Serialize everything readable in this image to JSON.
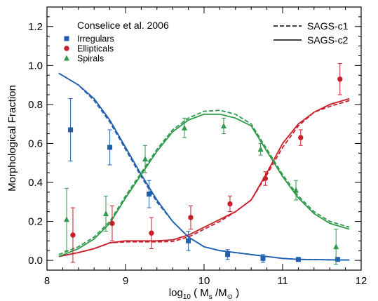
{
  "chart_data": {
    "type": "line",
    "xlabel": "log10 ( Ms /M⊙ )",
    "ylabel": "Morphological Fraction",
    "xlim": [
      8,
      12
    ],
    "ylim": [
      -0.05,
      1.3
    ],
    "xticks": [
      8,
      9,
      10,
      11,
      12
    ],
    "yticks": [
      0.0,
      0.2,
      0.4,
      0.6,
      0.8,
      1.0,
      1.2
    ],
    "grid": false,
    "legend_title": "Conselice et al. 2006",
    "colors": {
      "irregulars": "#1f5fb0",
      "ellipticals": "#c8202a",
      "spirals": "#2e9a4a"
    },
    "points": [
      {
        "name": "Irregulars",
        "marker": "square",
        "color": "#1f5fb0",
        "x": [
          8.3,
          8.8,
          9.3,
          9.8,
          10.3,
          10.75,
          11.2,
          11.7
        ],
        "y": [
          0.67,
          0.58,
          0.34,
          0.1,
          0.03,
          0.01,
          0.005,
          0.005
        ],
        "yerr": [
          0.16,
          0.09,
          0.07,
          0.05,
          0.025,
          0.02,
          0.008,
          0.008
        ]
      },
      {
        "name": "Ellipticals",
        "marker": "circle",
        "color": "#c8202a",
        "x": [
          8.33,
          8.83,
          9.33,
          9.83,
          10.33,
          10.78,
          11.23,
          11.73
        ],
        "y": [
          0.13,
          0.19,
          0.14,
          0.22,
          0.29,
          0.42,
          0.63,
          0.93
        ],
        "yerr": [
          0.14,
          0.09,
          0.08,
          0.06,
          0.04,
          0.035,
          0.04,
          0.08
        ]
      },
      {
        "name": "Spirals",
        "marker": "triangle",
        "color": "#2e9a4a",
        "x": [
          8.25,
          8.75,
          9.25,
          9.75,
          10.25,
          10.72,
          11.17,
          11.68
        ],
        "y": [
          0.21,
          0.24,
          0.52,
          0.68,
          0.69,
          0.57,
          0.36,
          0.07
        ],
        "yerr": [
          0.16,
          0.09,
          0.07,
          0.05,
          0.04,
          0.03,
          0.05,
          0.09
        ]
      }
    ],
    "series": [
      {
        "name": "SAGS-c1",
        "style": "dashed",
        "color": "#1f5fb0",
        "x": [
          8.15,
          8.4,
          8.6,
          8.8,
          9.0,
          9.2,
          9.4,
          9.6,
          9.8,
          10.0,
          10.2,
          10.4,
          10.6,
          10.8,
          11.0,
          11.2,
          11.4,
          11.6,
          11.85
        ],
        "y": [
          0.96,
          0.9,
          0.82,
          0.71,
          0.57,
          0.43,
          0.3,
          0.2,
          0.12,
          0.07,
          0.05,
          0.04,
          0.03,
          0.02,
          0.01,
          0.005,
          0.004,
          0.003,
          0.002
        ]
      },
      {
        "name": "SAGS-c2",
        "style": "solid",
        "color": "#1f5fb0",
        "x": [
          8.15,
          8.4,
          8.6,
          8.8,
          9.0,
          9.2,
          9.4,
          9.6,
          9.8,
          10.0,
          10.2,
          10.4,
          10.6,
          10.8,
          11.0,
          11.2,
          11.4,
          11.6,
          11.85
        ],
        "y": [
          0.96,
          0.9,
          0.83,
          0.72,
          0.58,
          0.44,
          0.31,
          0.2,
          0.12,
          0.07,
          0.05,
          0.04,
          0.03,
          0.02,
          0.01,
          0.005,
          0.004,
          0.003,
          0.002
        ]
      },
      {
        "name": "SAGS-c1",
        "style": "dashed",
        "color": "#c8202a",
        "x": [
          8.15,
          8.4,
          8.6,
          8.8,
          9.0,
          9.2,
          9.4,
          9.6,
          9.8,
          10.0,
          10.2,
          10.4,
          10.6,
          10.8,
          11.0,
          11.2,
          11.4,
          11.6,
          11.85
        ],
        "y": [
          0.02,
          0.04,
          0.06,
          0.09,
          0.095,
          0.095,
          0.095,
          0.097,
          0.12,
          0.16,
          0.2,
          0.25,
          0.31,
          0.44,
          0.58,
          0.69,
          0.76,
          0.79,
          0.82
        ]
      },
      {
        "name": "SAGS-c2",
        "style": "solid",
        "color": "#c8202a",
        "x": [
          8.15,
          8.4,
          8.6,
          8.8,
          9.0,
          9.2,
          9.4,
          9.6,
          9.8,
          10.0,
          10.2,
          10.4,
          10.6,
          10.8,
          11.0,
          11.2,
          11.4,
          11.6,
          11.85
        ],
        "y": [
          0.02,
          0.04,
          0.06,
          0.09,
          0.1,
          0.1,
          0.1,
          0.105,
          0.13,
          0.17,
          0.21,
          0.25,
          0.31,
          0.45,
          0.6,
          0.7,
          0.76,
          0.8,
          0.83
        ]
      },
      {
        "name": "SAGS-c1",
        "style": "dashed",
        "color": "#2e9a4a",
        "x": [
          8.15,
          8.4,
          8.6,
          8.8,
          9.0,
          9.2,
          9.4,
          9.6,
          9.8,
          10.0,
          10.2,
          10.4,
          10.6,
          10.8,
          11.0,
          11.2,
          11.4,
          11.6,
          11.85
        ],
        "y": [
          0.03,
          0.07,
          0.12,
          0.2,
          0.33,
          0.45,
          0.57,
          0.67,
          0.73,
          0.765,
          0.77,
          0.75,
          0.7,
          0.57,
          0.44,
          0.33,
          0.25,
          0.2,
          0.17
        ]
      },
      {
        "name": "SAGS-c2",
        "style": "solid",
        "color": "#2e9a4a",
        "x": [
          8.15,
          8.4,
          8.6,
          8.8,
          9.0,
          9.2,
          9.4,
          9.6,
          9.8,
          10.0,
          10.2,
          10.4,
          10.6,
          10.8,
          11.0,
          11.2,
          11.4,
          11.6,
          11.85
        ],
        "y": [
          0.02,
          0.06,
          0.11,
          0.19,
          0.32,
          0.44,
          0.56,
          0.66,
          0.72,
          0.75,
          0.75,
          0.73,
          0.69,
          0.56,
          0.43,
          0.32,
          0.24,
          0.19,
          0.16
        ]
      }
    ],
    "legend_models": [
      {
        "label": "SAGS-c1",
        "style": "dashed"
      },
      {
        "label": "SAGS-c2",
        "style": "solid"
      }
    ]
  }
}
